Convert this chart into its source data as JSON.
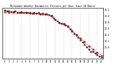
{
  "title": "Milwaukee Weather Barometric Pressure per Hour (Last 24 Hours)",
  "hours": [
    0,
    1,
    2,
    3,
    4,
    5,
    6,
    7,
    8,
    9,
    10,
    11,
    12,
    13,
    14,
    15,
    16,
    17,
    18,
    19,
    20,
    21,
    22,
    23
  ],
  "pressure_red": [
    30.13,
    30.12,
    30.11,
    30.12,
    30.1,
    30.11,
    30.09,
    30.09,
    30.08,
    30.07,
    30.05,
    30.0,
    29.88,
    29.78,
    29.74,
    29.68,
    29.55,
    29.42,
    29.3,
    29.18,
    29.05,
    28.95,
    28.85,
    28.75
  ],
  "pressure_black_x": [
    0,
    0.5,
    1,
    1.5,
    2,
    2.5,
    3,
    3.5,
    4,
    4.5,
    5,
    5.5,
    6,
    6.5,
    7,
    7.5,
    8,
    8.5,
    9,
    9.5,
    10,
    10.5,
    11,
    11.3,
    11.7,
    12,
    12.5,
    13,
    13.5,
    14,
    14.5,
    15,
    15.5,
    16,
    16.5,
    17,
    17.5,
    18,
    18.5,
    19,
    19.5,
    20,
    20.5,
    21,
    21.5,
    22,
    22.5,
    23
  ],
  "pressure_black_y": [
    30.18,
    30.16,
    30.15,
    30.14,
    30.13,
    30.15,
    30.12,
    30.11,
    30.13,
    30.1,
    30.12,
    30.1,
    30.11,
    30.09,
    30.1,
    30.08,
    30.1,
    30.07,
    30.08,
    30.06,
    30.07,
    30.04,
    30.02,
    30.0,
    29.95,
    29.9,
    29.83,
    29.8,
    29.77,
    29.76,
    29.72,
    29.67,
    29.6,
    29.52,
    29.45,
    29.38,
    29.32,
    29.25,
    29.17,
    29.1,
    29.02,
    28.95,
    28.88,
    28.88,
    28.82,
    28.78,
    28.73,
    28.7
  ],
  "ylim_min": 28.65,
  "ylim_max": 30.25,
  "ytick_values": [
    29.0,
    29.2,
    29.4,
    29.6,
    29.8,
    30.0,
    30.2
  ],
  "ytick_labels": [
    "29.0",
    "29.2",
    "29.4",
    "29.6",
    "29.8",
    "30.0",
    "30.2"
  ],
  "grid_x": [
    0,
    2,
    4,
    6,
    8,
    10,
    12,
    14,
    16,
    18,
    20,
    22
  ],
  "background_color": "#ffffff",
  "red_color": "#cc0000",
  "black_color": "#000000",
  "grid_color": "#999999"
}
